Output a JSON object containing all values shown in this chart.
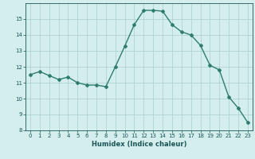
{
  "x": [
    0,
    1,
    2,
    3,
    4,
    5,
    6,
    7,
    8,
    9,
    10,
    11,
    12,
    13,
    14,
    15,
    16,
    17,
    18,
    19,
    20,
    21,
    22,
    23
  ],
  "y": [
    11.5,
    11.7,
    11.45,
    11.2,
    11.35,
    11.0,
    10.85,
    10.85,
    10.75,
    12.0,
    13.3,
    14.65,
    15.55,
    15.55,
    15.5,
    14.65,
    14.2,
    14.0,
    13.35,
    12.1,
    11.8,
    10.1,
    9.4,
    8.5
  ],
  "line_color": "#2e7d6e",
  "marker": "D",
  "markersize": 2.0,
  "linewidth": 1.0,
  "xlabel": "Humidex (Indice chaleur)",
  "xlim": [
    -0.5,
    23.5
  ],
  "ylim": [
    8,
    16
  ],
  "yticks": [
    8,
    9,
    10,
    11,
    12,
    13,
    14,
    15
  ],
  "xticks": [
    0,
    1,
    2,
    3,
    4,
    5,
    6,
    7,
    8,
    9,
    10,
    11,
    12,
    13,
    14,
    15,
    16,
    17,
    18,
    19,
    20,
    21,
    22,
    23
  ],
  "bg_color": "#d4eeee",
  "grid_color": "#aacece",
  "tick_color": "#1a5555",
  "label_color": "#1a5555"
}
